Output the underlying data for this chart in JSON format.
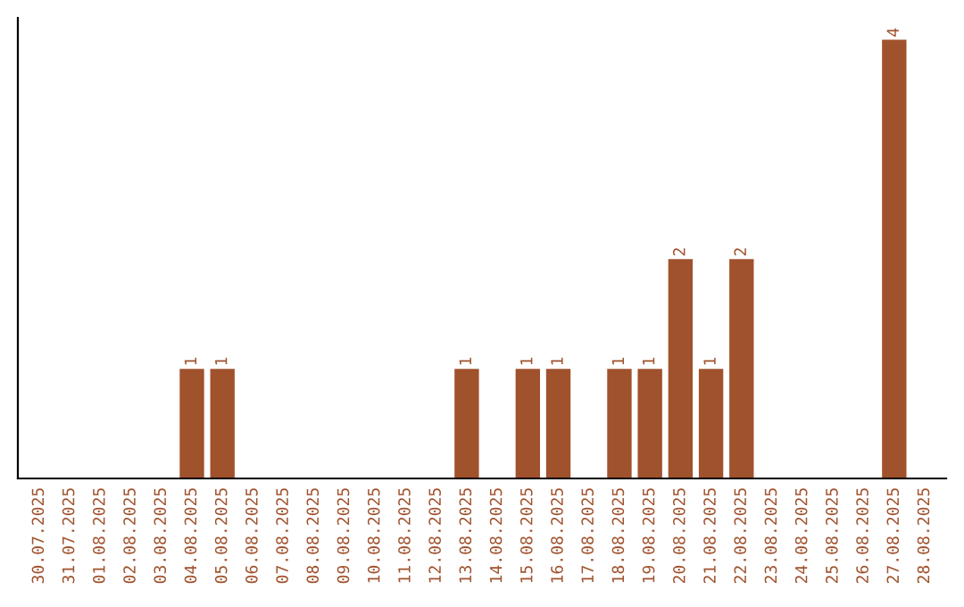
{
  "chart_data": {
    "type": "bar",
    "categories": [
      "30.07.2025",
      "31.07.2025",
      "01.08.2025",
      "02.08.2025",
      "03.08.2025",
      "04.08.2025",
      "05.08.2025",
      "06.08.2025",
      "07.08.2025",
      "08.08.2025",
      "09.08.2025",
      "10.08.2025",
      "11.08.2025",
      "12.08.2025",
      "13.08.2025",
      "14.08.2025",
      "15.08.2025",
      "16.08.2025",
      "17.08.2025",
      "18.08.2025",
      "19.08.2025",
      "20.08.2025",
      "21.08.2025",
      "22.08.2025",
      "23.08.2025",
      "24.08.2025",
      "25.08.2025",
      "26.08.2025",
      "27.08.2025",
      "28.08.2025"
    ],
    "values": [
      0,
      0,
      0,
      0,
      0,
      1,
      1,
      0,
      0,
      0,
      0,
      0,
      0,
      0,
      1,
      0,
      1,
      1,
      0,
      1,
      1,
      2,
      1,
      2,
      0,
      0,
      0,
      0,
      4,
      0
    ],
    "value_labels": [
      null,
      null,
      null,
      null,
      null,
      "1",
      "1",
      null,
      null,
      null,
      null,
      null,
      null,
      null,
      "1",
      null,
      "1",
      "1",
      null,
      "1",
      "1",
      "2",
      "1",
      "2",
      null,
      null,
      null,
      null,
      "4",
      null
    ],
    "color": "#a0522d",
    "ylim": [
      0,
      4.2
    ],
    "tick_labels": "x",
    "grid": false,
    "legend": false
  }
}
